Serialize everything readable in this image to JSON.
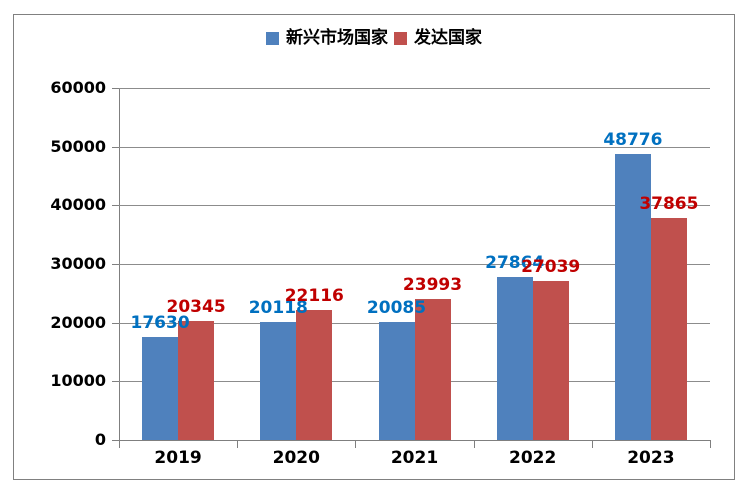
{
  "chart_data": {
    "type": "bar",
    "title": "",
    "xlabel": "",
    "ylabel": "",
    "categories": [
      "2019",
      "2020",
      "2021",
      "2022",
      "2023"
    ],
    "series": [
      {
        "name": "新兴市场国家",
        "color": "#4F81BD",
        "label_color": "#0070C0",
        "values": [
          17630,
          20118,
          20085,
          27864,
          48776
        ]
      },
      {
        "name": "发达国家",
        "color": "#C0504D",
        "label_color": "#C00000",
        "values": [
          20345,
          22116,
          23993,
          27039,
          37865
        ]
      }
    ],
    "ylim": [
      0,
      60000
    ],
    "ytick_step": 10000,
    "ytick_labels": [
      "0",
      "10000",
      "20000",
      "30000",
      "40000",
      "50000",
      "60000"
    ],
    "grid": true,
    "legend_position": "top",
    "data_labels": true
  },
  "frame": {
    "border_color": "#808080",
    "background": "#FFFFFF"
  },
  "axes": {
    "axis_line_color": "#7F7F7F",
    "gridline_color": "#8C8C8C",
    "tick_label_color": "#000000"
  }
}
